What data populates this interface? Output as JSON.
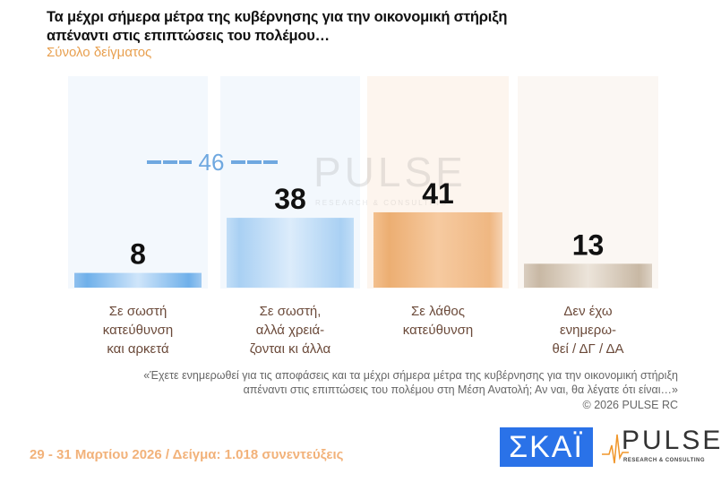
{
  "header": {
    "title_line1": "Τα μέχρι σήμερα μέτρα της κυβέρνησης για την οικονομική στήριξη",
    "title_line2": "απέναντι στις επιπτώσεις του πολέμου…",
    "subtitle": "Σύνολο δείγματος"
  },
  "chart_data": {
    "type": "bar",
    "title": "Τα μέχρι σήμερα μέτρα της κυβέρνησης για την οικονομική στήριξη απέναντι στις επιπτώσεις του πολέμου…",
    "subtitle": "Σύνολο δείγματος",
    "categories": [
      "Σε σωστή\nκατεύθυνση\nκαι αρκετά",
      "Σε σωστή,\nαλλά χρειά-\nζονται κι άλλα",
      "Σε λάθος\nκατεύθυνση",
      "Δεν έχω\nενημερω-\nθεί / ΔΓ / ΔΑ"
    ],
    "values": [
      8,
      38,
      41,
      13
    ],
    "value_labels": [
      "8",
      "38",
      "41",
      "13"
    ],
    "colors": [
      "#7fb6ea",
      "#b3d6f5",
      "#f0b47c",
      "#cdbfae"
    ],
    "annotation": {
      "label": "46",
      "spans_categories": [
        0,
        1
      ],
      "color": "#6fa8e0"
    },
    "ylim": [
      0,
      100
    ],
    "grid": false
  },
  "note": {
    "question": "«Έχετε ενημερωθεί για τις αποφάσεις και τα μέχρι σήμερα  μέτρα της κυβέρνησης για την οικονομική στήριξη\nαπέναντι στις επιπτώσεις του πολέμου στη Μέση Ανατολή; Αν ναι, θα λέγατε ότι είναι…»",
    "copyright": "©  2026  PULSE RC"
  },
  "footer": {
    "text": "29 - 31  Μαρτίου 2026  /  Δείγμα:  1.018 συνεντεύξεις"
  },
  "logos": {
    "skai": "ΣΚΑΪ",
    "pulse": "PULSE",
    "pulse_tagline": "RESEARCH & CONSULTING"
  }
}
